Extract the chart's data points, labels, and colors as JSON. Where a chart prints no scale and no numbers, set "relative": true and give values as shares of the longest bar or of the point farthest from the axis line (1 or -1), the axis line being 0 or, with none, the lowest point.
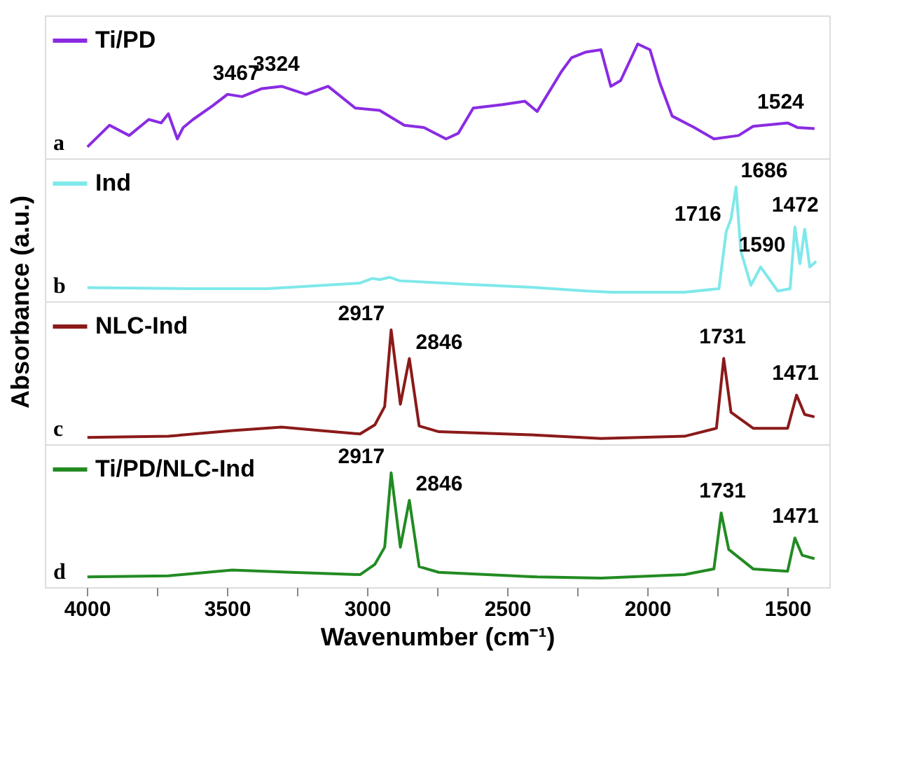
{
  "chart_data": [
    {
      "type": "line",
      "relative": true,
      "xlim": [
        4150,
        1350
      ],
      "tick_labels": false,
      "legend": "top left",
      "annotations": [
        "a",
        {
          "text": "3467",
          "x": 3467,
          "y": 0.55
        },
        {
          "text": "3324",
          "x": 3324,
          "y": 0.63
        },
        {
          "text": "1524",
          "x": 1524,
          "y": 0.3
        }
      ],
      "series": [
        {
          "name": "Ti/PD",
          "color": "#8a2be2",
          "x": [
            3998,
            3919,
            3849,
            3779,
            3735,
            3709,
            3677,
            3656,
            3621,
            3551,
            3498,
            3446,
            3375,
            3305,
            3218,
            3139,
            3042,
            2955,
            2867,
            2797,
            2718,
            2674,
            2621,
            2516,
            2437,
            2393,
            2306,
            2270,
            2218,
            2165,
            2130,
            2095,
            2034,
            1990,
            1955,
            1911,
            1832,
            1762,
            1674,
            1622,
            1499,
            1464,
            1403
          ],
          "values": [
            0.1,
            0.29,
            0.2,
            0.34,
            0.31,
            0.39,
            0.17,
            0.27,
            0.34,
            0.46,
            0.56,
            0.54,
            0.61,
            0.63,
            0.56,
            0.63,
            0.44,
            0.42,
            0.29,
            0.27,
            0.17,
            0.22,
            0.44,
            0.47,
            0.5,
            0.41,
            0.76,
            0.88,
            0.93,
            0.95,
            0.63,
            0.68,
            1.0,
            0.95,
            0.66,
            0.37,
            0.27,
            0.17,
            0.2,
            0.28,
            0.31,
            0.27,
            0.26
          ]
        }
      ]
    },
    {
      "type": "line",
      "relative": true,
      "xlim": [
        4150,
        1350
      ],
      "tick_labels": false,
      "legend": "top left",
      "ylabel": "Absorbance (a.u.)",
      "annotations": [
        "b",
        {
          "text": "1686",
          "x": 1686,
          "y": 1.0
        },
        {
          "text": "1716",
          "x": 1716,
          "y": 0.62
        },
        {
          "text": "1590",
          "x": 1590,
          "y": 0.3
        },
        {
          "text": "1472",
          "x": 1472,
          "y": 0.65
        }
      ],
      "series": [
        {
          "name": "Ind",
          "color": "#7fe8ea",
          "x": [
            3998,
            3621,
            3358,
            3025,
            2981,
            2955,
            2919,
            2884,
            2656,
            2393,
            2218,
            2130,
            1867,
            1744,
            1718,
            1701,
            1683,
            1666,
            1630,
            1595,
            1569,
            1534,
            1490,
            1473,
            1455,
            1438,
            1420,
            1397
          ],
          "values": [
            0.12,
            0.11,
            0.11,
            0.16,
            0.2,
            0.19,
            0.21,
            0.18,
            0.15,
            0.12,
            0.09,
            0.08,
            0.08,
            0.11,
            0.61,
            0.72,
            1.0,
            0.44,
            0.14,
            0.3,
            0.21,
            0.09,
            0.11,
            0.65,
            0.33,
            0.63,
            0.3,
            0.35
          ]
        }
      ]
    },
    {
      "type": "line",
      "relative": true,
      "xlim": [
        4150,
        1350
      ],
      "tick_labels": false,
      "legend": "top left",
      "annotations": [
        "c",
        {
          "text": "2917",
          "x": 2917,
          "y": 1.0
        },
        {
          "text": "2846",
          "x": 2846,
          "y": 0.75
        },
        {
          "text": "1731",
          "x": 1731,
          "y": 0.75
        },
        {
          "text": "1471",
          "x": 1471,
          "y": 0.43
        }
      ],
      "series": [
        {
          "name": "NLC-Ind",
          "color": "#8b1a1a",
          "x": [
            3998,
            3709,
            3481,
            3305,
            3165,
            3025,
            2972,
            2937,
            2914,
            2881,
            2849,
            2814,
            2744,
            2393,
            2165,
            1867,
            1753,
            1727,
            1701,
            1622,
            1499,
            1467,
            1438,
            1403
          ],
          "values": [
            0.06,
            0.07,
            0.12,
            0.15,
            0.12,
            0.09,
            0.17,
            0.33,
            1.0,
            0.35,
            0.75,
            0.16,
            0.11,
            0.08,
            0.05,
            0.07,
            0.14,
            0.75,
            0.28,
            0.14,
            0.14,
            0.43,
            0.26,
            0.24
          ]
        }
      ]
    },
    {
      "type": "line",
      "relative": true,
      "xlim": [
        4150,
        1350
      ],
      "tick_labels": "x",
      "legend": "top left",
      "xlabel": "Wavenumber (cm⁻¹)",
      "xticks": [
        4000,
        {
          "value": 3750,
          "label": null
        },
        3500,
        {
          "value": 3250,
          "label": null
        },
        3000,
        {
          "value": 2750,
          "label": null
        },
        2500,
        {
          "value": 2250,
          "label": null
        },
        2000,
        {
          "value": 1750,
          "label": null
        },
        1500
      ],
      "annotations": [
        "d",
        {
          "text": "2917",
          "x": 2917,
          "y": 1.0
        },
        {
          "text": "2846",
          "x": 2846,
          "y": 0.76
        },
        {
          "text": "1731",
          "x": 1731,
          "y": 0.65
        },
        {
          "text": "1471",
          "x": 1471,
          "y": 0.43
        }
      ],
      "series": [
        {
          "name": "Ti/PD/NLC-Ind",
          "color": "#228b22",
          "x": [
            3998,
            3709,
            3481,
            3270,
            3025,
            2972,
            2937,
            2914,
            2881,
            2849,
            2814,
            2744,
            2393,
            2165,
            1867,
            1762,
            1736,
            1709,
            1622,
            1499,
            1473,
            1447,
            1403
          ],
          "values": [
            0.09,
            0.1,
            0.15,
            0.13,
            0.11,
            0.2,
            0.35,
            1.0,
            0.35,
            0.76,
            0.18,
            0.13,
            0.09,
            0.08,
            0.11,
            0.16,
            0.65,
            0.33,
            0.16,
            0.14,
            0.43,
            0.28,
            0.25
          ]
        }
      ]
    }
  ]
}
